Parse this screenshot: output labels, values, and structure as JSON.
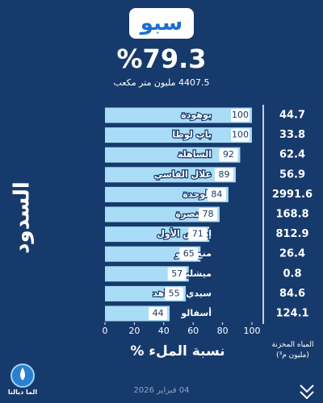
{
  "chart_data": {
    "type": "bar",
    "orientation": "horizontal",
    "title": "سبو",
    "headline": "%79.3",
    "subtitle": "4407.5 مليون متر مكعب",
    "y_label": "السدود",
    "x_label": "نسبة الملء %",
    "categories": [
      "بوهودة",
      "باب لوطا",
      "الساهلة",
      "علال الفاسي",
      "الوحدة",
      "القنصرة",
      "إدريس الأول",
      "منع سبو",
      "ميشليفن",
      "سيدي الشاهد",
      "أسفالو"
    ],
    "values": [
      100,
      100,
      92,
      89,
      84,
      78,
      71,
      65,
      57,
      55,
      44
    ],
    "color": "#a9dcf7",
    "xlim": [
      0,
      100
    ],
    "xticks": [
      0,
      20,
      40,
      60,
      80,
      100
    ],
    "stored": {
      "title": "المياه المخزنة (مليون م³)",
      "values": [
        "44.7",
        "33.8",
        "62.4",
        "56.9",
        "2991.6",
        "168.8",
        "812.9",
        "26.4",
        "0.8",
        "84.6",
        "124.1"
      ]
    },
    "date": "04 فبراير 2026",
    "logo": "الما ديالنا"
  }
}
